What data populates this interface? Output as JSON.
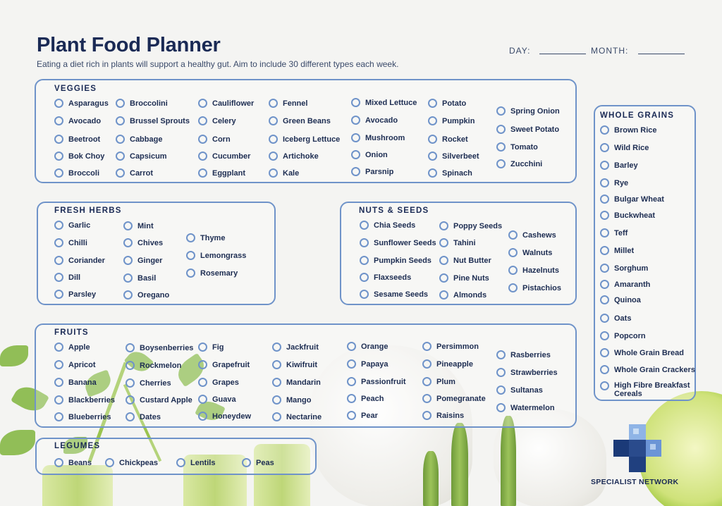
{
  "header": {
    "title": "Plant Food Planner",
    "subtitle": "Eating a diet rich in plants will support a healthy gut. Aim to include 30 different types each week.",
    "day_label": "DAY:",
    "month_label": "MONTH:"
  },
  "veggies": {
    "title": "VEGGIES",
    "items": [
      "Asparagus",
      "Avocado",
      "Beetroot",
      "Bok Choy",
      "Broccoli",
      "Broccolini",
      "Brussel Sprouts",
      "Cabbage",
      "Capsicum",
      "Carrot",
      "Cauliflower",
      "Celery",
      "Corn",
      "Cucumber",
      "Eggplant",
      "Fennel",
      "Green Beans",
      "Iceberg Lettuce",
      "Artichoke",
      "Kale",
      "Mixed Lettuce",
      "Avocado",
      "Mushroom",
      "Onion",
      "Parsnip",
      "Potato",
      "Pumpkin",
      "Rocket",
      "Silverbeet",
      "Spinach",
      "Spring Onion",
      "Sweet Potato",
      "Tomato",
      "Zucchini"
    ]
  },
  "herbs": {
    "title": "FRESH HERBS",
    "items": [
      "Garlic",
      "Chilli",
      "Coriander",
      "Dill",
      "Parsley",
      "Mint",
      "Chives",
      "Ginger",
      "Basil",
      "Oregano",
      "Thyme",
      "Lemongrass",
      "Rosemary"
    ]
  },
  "nuts": {
    "title": "NUTS & SEEDS",
    "items": [
      "Chia Seeds",
      "Sunflower Seeds",
      "Pumpkin Seeds",
      "Flaxseeds",
      "Sesame Seeds",
      "Poppy Seeds",
      "Tahini",
      "Nut Butter",
      "Pine Nuts",
      "Almonds",
      "Cashews",
      "Walnuts",
      "Hazelnuts",
      "Pistachios"
    ]
  },
  "fruits": {
    "title": "FRUITS",
    "items": [
      "Apple",
      "Apricot",
      "Banana",
      "Blackberries",
      "Blueberries",
      "Boysenberries",
      "Rockmelon",
      "Cherries",
      "Custard Apple",
      "Dates",
      "Fig",
      "Grapefruit",
      "Grapes",
      "Guava",
      "Honeydew",
      "Jackfruit",
      "Kiwifruit",
      "Mandarin",
      "Mango",
      "Nectarine",
      "Orange",
      "Papaya",
      "Passionfruit",
      "Peach",
      "Pear",
      "Persimmon",
      "Pineapple",
      "Plum",
      "Pomegranate",
      "Raisins",
      "Rasberries",
      "Strawberries",
      "Sultanas",
      "Watermelon"
    ]
  },
  "legumes": {
    "title": "LEGUMES",
    "items": [
      "Beans",
      "Chickpeas",
      "Lentils",
      "Peas"
    ]
  },
  "grains": {
    "title": "WHOLE GRAINS",
    "items": [
      "Brown Rice",
      "Wild Rice",
      "Barley",
      "Rye",
      "Bulgar Wheat",
      "Buckwheat",
      "Teff",
      "Millet",
      "Sorghum",
      "Amaranth",
      "Quinoa",
      "Oats",
      "Popcorn",
      "Whole Grain Bread",
      "Whole Grain Crackers",
      "High Fibre Breakfast Cereals"
    ]
  },
  "logo": {
    "text": "SPECIALIST NETWORK"
  },
  "colors": {
    "navy": "#1a2a55",
    "accent": "#6f93c9",
    "background": "#f4f4f2"
  }
}
